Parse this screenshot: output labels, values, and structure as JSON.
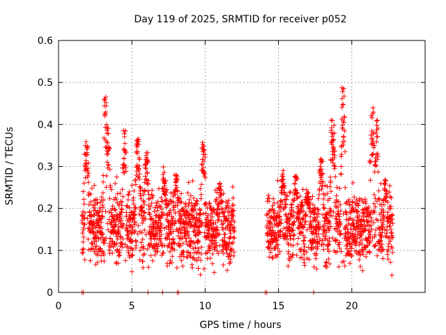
{
  "chart_data": {
    "type": "scatter",
    "title": "Day 119 of 2025, SRMTID for receiver p052",
    "xlabel": "GPS time / hours",
    "ylabel": "SRMTID / TECUs",
    "xlim": [
      0,
      25
    ],
    "ylim": [
      0,
      0.6
    ],
    "x_ticks": [
      0,
      5,
      10,
      15,
      20
    ],
    "x_tick_labels": [
      "0",
      "5",
      "10",
      "15",
      "20"
    ],
    "y_ticks": [
      0,
      0.1,
      0.2,
      0.3,
      0.4,
      0.5,
      0.6
    ],
    "y_tick_labels": [
      "0",
      "0.1",
      "0.2",
      "0.3",
      "0.4",
      "0.5",
      "0.6"
    ],
    "grid": true,
    "marker": "plus",
    "series_color": "#ff0000",
    "zero_markers_x": [
      1.6,
      1.7,
      6.1,
      7.1,
      8.1,
      8.2,
      14.1,
      14.2,
      17.4
    ],
    "series": [
      {
        "name": "SRMTID",
        "segments": [
          {
            "x_range": [
              1.6,
              12.0
            ],
            "baseline": 0.155,
            "spread": 0.042,
            "bursts": [
              {
                "x": 1.9,
                "peak": 0.36,
                "width": 0.12
              },
              {
                "x": 3.2,
                "peak": 0.48,
                "width": 0.1
              },
              {
                "x": 3.4,
                "peak": 0.4,
                "width": 0.1
              },
              {
                "x": 4.5,
                "peak": 0.39,
                "width": 0.1
              },
              {
                "x": 5.4,
                "peak": 0.37,
                "width": 0.12
              },
              {
                "x": 6.0,
                "peak": 0.34,
                "width": 0.1
              },
              {
                "x": 7.2,
                "peak": 0.3,
                "width": 0.1
              },
              {
                "x": 8.0,
                "peak": 0.29,
                "width": 0.1
              },
              {
                "x": 9.9,
                "peak": 0.37,
                "width": 0.12
              },
              {
                "x": 11.0,
                "peak": 0.26,
                "width": 0.1
              }
            ]
          },
          {
            "x_range": [
              14.2,
              22.8
            ],
            "baseline": 0.155,
            "spread": 0.042,
            "bursts": [
              {
                "x": 15.3,
                "peak": 0.29,
                "width": 0.12
              },
              {
                "x": 16.2,
                "peak": 0.28,
                "width": 0.1
              },
              {
                "x": 17.0,
                "peak": 0.24,
                "width": 0.1
              },
              {
                "x": 17.9,
                "peak": 0.32,
                "width": 0.12
              },
              {
                "x": 18.7,
                "peak": 0.42,
                "width": 0.12
              },
              {
                "x": 19.4,
                "peak": 0.5,
                "width": 0.1
              },
              {
                "x": 21.4,
                "peak": 0.46,
                "width": 0.12
              },
              {
                "x": 21.7,
                "peak": 0.41,
                "width": 0.1
              },
              {
                "x": 22.3,
                "peak": 0.27,
                "width": 0.1
              }
            ]
          }
        ],
        "samples_per_hour": 130
      }
    ]
  }
}
